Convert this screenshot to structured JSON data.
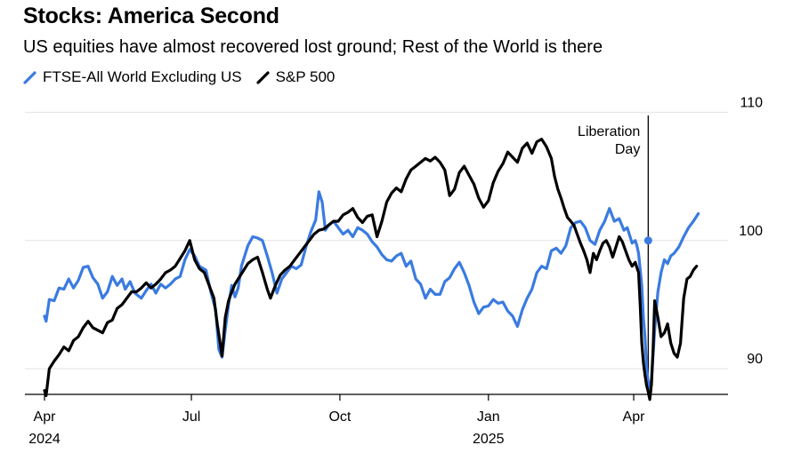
{
  "chart_data": {
    "type": "line",
    "title": "Stocks: America Second",
    "subtitle": "US equities have almost recovered lost ground; Rest of the World is there",
    "legend": [
      {
        "name": "FTSE-All World Excluding US",
        "color": "#3a7be0"
      },
      {
        "name": "S&P 500",
        "color": "#000000"
      }
    ],
    "y_axis": {
      "ticks": [
        90,
        100,
        110
      ],
      "range": [
        88,
        111
      ],
      "position": "right"
    },
    "x_axis": {
      "ticks": [
        {
          "label": "Apr",
          "year": "2024",
          "t": 0
        },
        {
          "label": "Jul",
          "year": "",
          "t": 91
        },
        {
          "label": "Oct",
          "year": "",
          "t": 183
        },
        {
          "label": "Jan",
          "year": "2025",
          "t": 275
        },
        {
          "label": "Apr",
          "year": "",
          "t": 365
        }
      ],
      "range": [
        0,
        408
      ]
    },
    "annotation": {
      "line1": "Liberation",
      "line2": "Day",
      "t": 374
    },
    "series": [
      {
        "name": "FTSE-All World Excluding US",
        "color": "#3a7be0",
        "points": [
          [
            0,
            94.1
          ],
          [
            1,
            93.7
          ],
          [
            3,
            95.4
          ],
          [
            6,
            95.3
          ],
          [
            9,
            96.3
          ],
          [
            12,
            96.2
          ],
          [
            15,
            97.0
          ],
          [
            18,
            96.3
          ],
          [
            21,
            96.9
          ],
          [
            24,
            97.9
          ],
          [
            27,
            98.0
          ],
          [
            30,
            97.1
          ],
          [
            33,
            96.6
          ],
          [
            36,
            95.5
          ],
          [
            39,
            96.0
          ],
          [
            42,
            97.2
          ],
          [
            45,
            96.5
          ],
          [
            48,
            97.0
          ],
          [
            50,
            96.2
          ],
          [
            53,
            96.8
          ],
          [
            56,
            95.9
          ],
          [
            60,
            95.5
          ],
          [
            63,
            96.1
          ],
          [
            66,
            96.6
          ],
          [
            69,
            95.9
          ],
          [
            72,
            96.6
          ],
          [
            75,
            96.3
          ],
          [
            78,
            96.6
          ],
          [
            81,
            97.0
          ],
          [
            84,
            97.2
          ],
          [
            87,
            98.5
          ],
          [
            90,
            99.3
          ],
          [
            93,
            98.8
          ],
          [
            96,
            98.0
          ],
          [
            100,
            97.7
          ],
          [
            103,
            96.0
          ],
          [
            106,
            94.6
          ],
          [
            108,
            91.5
          ],
          [
            110,
            90.9
          ],
          [
            112,
            93.0
          ],
          [
            114,
            95.0
          ],
          [
            116,
            96.5
          ],
          [
            118,
            95.6
          ],
          [
            120,
            96.3
          ],
          [
            122,
            98.0
          ],
          [
            124,
            98.8
          ],
          [
            126,
            99.6
          ],
          [
            129,
            100.3
          ],
          [
            132,
            100.2
          ],
          [
            135,
            100.0
          ],
          [
            138,
            98.8
          ],
          [
            141,
            97.5
          ],
          [
            144,
            95.9
          ],
          [
            147,
            97.0
          ],
          [
            150,
            97.5
          ],
          [
            153,
            98.0
          ],
          [
            156,
            97.8
          ],
          [
            159,
            98.1
          ],
          [
            162,
            99.5
          ],
          [
            165,
            100.7
          ],
          [
            168,
            101.6
          ],
          [
            170,
            103.8
          ],
          [
            172,
            103.0
          ],
          [
            174,
            100.8
          ],
          [
            176,
            101.2
          ],
          [
            179,
            101.5
          ],
          [
            182,
            101.0
          ],
          [
            185,
            100.5
          ],
          [
            188,
            100.8
          ],
          [
            191,
            100.3
          ],
          [
            194,
            101.0
          ],
          [
            197,
            100.8
          ],
          [
            200,
            100.5
          ],
          [
            203,
            99.9
          ],
          [
            206,
            99.5
          ],
          [
            209,
            98.9
          ],
          [
            212,
            98.5
          ],
          [
            215,
            98.4
          ],
          [
            218,
            98.8
          ],
          [
            221,
            99.0
          ],
          [
            224,
            98.0
          ],
          [
            227,
            98.4
          ],
          [
            230,
            97.0
          ],
          [
            233,
            96.6
          ],
          [
            236,
            95.5
          ],
          [
            239,
            96.2
          ],
          [
            242,
            95.8
          ],
          [
            245,
            95.8
          ],
          [
            248,
            96.8
          ],
          [
            251,
            97.1
          ],
          [
            254,
            97.8
          ],
          [
            257,
            98.3
          ],
          [
            260,
            97.5
          ],
          [
            263,
            96.5
          ],
          [
            266,
            95.2
          ],
          [
            269,
            94.3
          ],
          [
            272,
            94.8
          ],
          [
            275,
            94.9
          ],
          [
            278,
            95.4
          ],
          [
            281,
            95.1
          ],
          [
            284,
            95.2
          ],
          [
            287,
            94.5
          ],
          [
            290,
            94.1
          ],
          [
            293,
            93.3
          ],
          [
            296,
            94.6
          ],
          [
            299,
            95.5
          ],
          [
            302,
            96.2
          ],
          [
            305,
            97.5
          ],
          [
            308,
            98.0
          ],
          [
            311,
            97.8
          ],
          [
            314,
            99.2
          ],
          [
            317,
            99.4
          ],
          [
            320,
            99.0
          ],
          [
            323,
            99.6
          ],
          [
            326,
            101.0
          ],
          [
            329,
            101.4
          ],
          [
            332,
            101.5
          ],
          [
            335,
            101.0
          ],
          [
            338,
            100.0
          ],
          [
            341,
            99.7
          ],
          [
            344,
            100.8
          ],
          [
            347,
            101.5
          ],
          [
            350,
            102.5
          ],
          [
            353,
            101.5
          ],
          [
            356,
            101.7
          ],
          [
            359,
            100.8
          ],
          [
            361,
            101.0
          ],
          [
            364,
            99.8
          ],
          [
            366,
            100.0
          ],
          [
            367,
            99.6
          ],
          [
            368,
            99.0
          ],
          [
            370,
            96.5
          ],
          [
            371,
            94.0
          ],
          [
            372,
            92.5
          ],
          [
            373,
            90.1
          ],
          [
            374,
            88.9
          ],
          [
            375,
            88.5
          ],
          [
            376,
            89.2
          ],
          [
            378,
            93.0
          ],
          [
            380,
            96.0
          ],
          [
            382,
            97.5
          ],
          [
            384,
            98.5
          ],
          [
            386,
            98.2
          ],
          [
            388,
            98.8
          ],
          [
            390,
            99.0
          ],
          [
            393,
            99.5
          ],
          [
            396,
            100.3
          ],
          [
            399,
            101.0
          ],
          [
            402,
            101.5
          ],
          [
            405,
            102.1
          ]
        ]
      },
      {
        "name": "S&P 500",
        "color": "#000000",
        "points": [
          [
            0,
            88.3
          ],
          [
            1,
            87.9
          ],
          [
            3,
            90.0
          ],
          [
            6,
            90.6
          ],
          [
            9,
            91.1
          ],
          [
            12,
            91.7
          ],
          [
            15,
            91.4
          ],
          [
            18,
            92.2
          ],
          [
            21,
            92.5
          ],
          [
            24,
            93.2
          ],
          [
            27,
            93.7
          ],
          [
            30,
            93.2
          ],
          [
            33,
            93.0
          ],
          [
            36,
            92.8
          ],
          [
            39,
            93.6
          ],
          [
            42,
            93.8
          ],
          [
            45,
            94.7
          ],
          [
            48,
            95.0
          ],
          [
            51,
            95.5
          ],
          [
            54,
            96.0
          ],
          [
            57,
            96.0
          ],
          [
            60,
            96.3
          ],
          [
            63,
            96.7
          ],
          [
            66,
            96.3
          ],
          [
            69,
            96.6
          ],
          [
            72,
            97.0
          ],
          [
            75,
            97.5
          ],
          [
            78,
            97.7
          ],
          [
            81,
            98.0
          ],
          [
            84,
            98.6
          ],
          [
            87,
            99.2
          ],
          [
            90,
            100.0
          ],
          [
            93,
            98.5
          ],
          [
            96,
            97.8
          ],
          [
            99,
            97.5
          ],
          [
            102,
            96.5
          ],
          [
            105,
            95.5
          ],
          [
            107,
            93.5
          ],
          [
            110,
            91.0
          ],
          [
            112,
            94.0
          ],
          [
            114,
            95.3
          ],
          [
            116,
            96.0
          ],
          [
            118,
            96.6
          ],
          [
            120,
            97.0
          ],
          [
            123,
            97.6
          ],
          [
            126,
            98.2
          ],
          [
            129,
            98.5
          ],
          [
            132,
            98.7
          ],
          [
            135,
            97.5
          ],
          [
            138,
            96.2
          ],
          [
            140,
            95.5
          ],
          [
            143,
            96.5
          ],
          [
            146,
            97.3
          ],
          [
            149,
            97.7
          ],
          [
            152,
            98.0
          ],
          [
            155,
            98.5
          ],
          [
            158,
            99.0
          ],
          [
            161,
            99.5
          ],
          [
            164,
            100.0
          ],
          [
            167,
            100.5
          ],
          [
            170,
            100.8
          ],
          [
            173,
            100.9
          ],
          [
            176,
            101.2
          ],
          [
            179,
            101.5
          ],
          [
            182,
            101.5
          ],
          [
            185,
            102.0
          ],
          [
            188,
            102.2
          ],
          [
            191,
            102.5
          ],
          [
            194,
            101.8
          ],
          [
            197,
            101.4
          ],
          [
            200,
            101.9
          ],
          [
            203,
            102.0
          ],
          [
            206,
            100.3
          ],
          [
            209,
            101.5
          ],
          [
            212,
            103.0
          ],
          [
            215,
            103.7
          ],
          [
            218,
            104.1
          ],
          [
            221,
            103.8
          ],
          [
            224,
            104.8
          ],
          [
            227,
            105.5
          ],
          [
            230,
            105.8
          ],
          [
            233,
            106.1
          ],
          [
            236,
            106.4
          ],
          [
            239,
            106.2
          ],
          [
            242,
            106.5
          ],
          [
            245,
            106.1
          ],
          [
            248,
            105.5
          ],
          [
            251,
            103.5
          ],
          [
            254,
            104.0
          ],
          [
            257,
            105.3
          ],
          [
            260,
            105.8
          ],
          [
            263,
            105.1
          ],
          [
            266,
            104.4
          ],
          [
            269,
            103.3
          ],
          [
            272,
            102.6
          ],
          [
            275,
            103.1
          ],
          [
            278,
            104.5
          ],
          [
            281,
            105.4
          ],
          [
            284,
            106.0
          ],
          [
            287,
            106.9
          ],
          [
            290,
            106.5
          ],
          [
            293,
            106.1
          ],
          [
            296,
            107.2
          ],
          [
            299,
            107.6
          ],
          [
            302,
            106.8
          ],
          [
            305,
            107.7
          ],
          [
            308,
            107.9
          ],
          [
            311,
            107.3
          ],
          [
            314,
            106.4
          ],
          [
            316,
            105.0
          ],
          [
            318,
            104.0
          ],
          [
            320,
            103.3
          ],
          [
            322,
            102.5
          ],
          [
            324,
            101.8
          ],
          [
            326,
            101.5
          ],
          [
            328,
            101.2
          ],
          [
            330,
            100.5
          ],
          [
            332,
            99.8
          ],
          [
            334,
            99.2
          ],
          [
            336,
            98.5
          ],
          [
            338,
            97.5
          ],
          [
            340,
            99.0
          ],
          [
            342,
            98.5
          ],
          [
            344,
            99.2
          ],
          [
            346,
            99.8
          ],
          [
            348,
            100.0
          ],
          [
            350,
            99.5
          ],
          [
            352,
            98.7
          ],
          [
            354,
            99.5
          ],
          [
            356,
            100.3
          ],
          [
            358,
            99.9
          ],
          [
            360,
            99.2
          ],
          [
            362,
            98.5
          ],
          [
            364,
            98.0
          ],
          [
            366,
            98.3
          ],
          [
            367,
            97.9
          ],
          [
            368,
            97.5
          ],
          [
            369,
            95.0
          ],
          [
            370,
            92.0
          ],
          [
            371,
            90.5
          ],
          [
            372,
            89.5
          ],
          [
            373,
            88.7
          ],
          [
            374,
            88.2
          ],
          [
            375,
            87.6
          ],
          [
            376,
            88.8
          ],
          [
            377,
            91.5
          ],
          [
            378,
            95.3
          ],
          [
            380,
            94.0
          ],
          [
            382,
            92.5
          ],
          [
            384,
            92.8
          ],
          [
            386,
            93.5
          ],
          [
            388,
            92.0
          ],
          [
            390,
            91.2
          ],
          [
            392,
            90.9
          ],
          [
            394,
            92.0
          ],
          [
            396,
            95.5
          ],
          [
            398,
            97.0
          ],
          [
            400,
            97.2
          ],
          [
            402,
            97.7
          ],
          [
            404,
            98.0
          ]
        ]
      }
    ]
  }
}
